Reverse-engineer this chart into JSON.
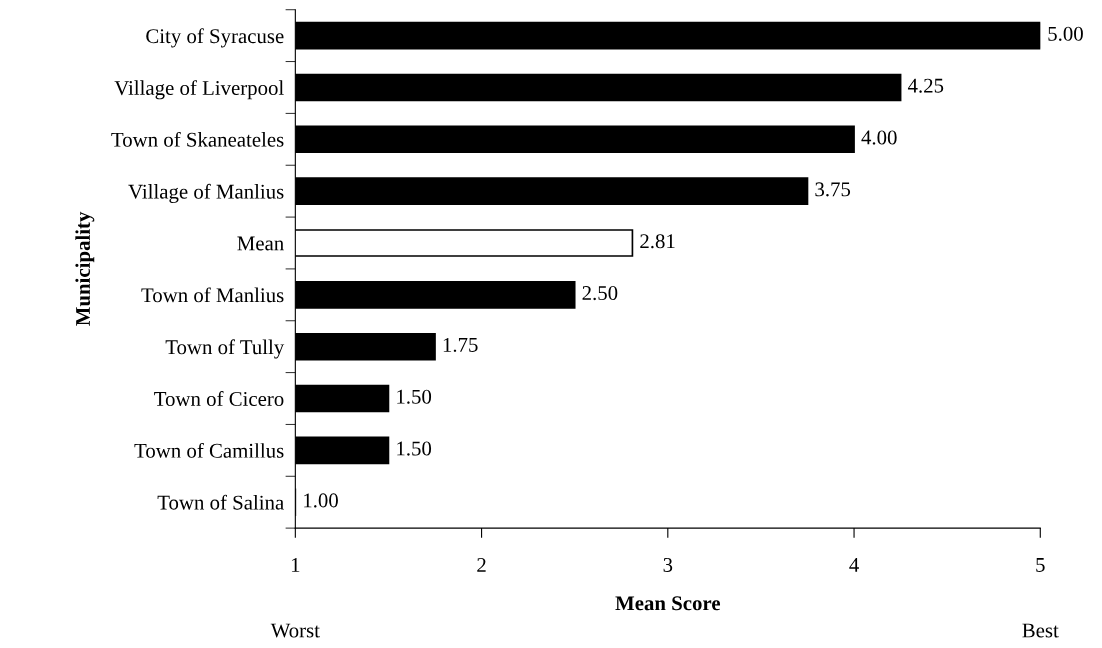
{
  "chart_data": {
    "type": "bar",
    "orientation": "horizontal",
    "xlabel": "Mean Score",
    "ylabel": "Municipality",
    "categories": [
      "City of Syracuse",
      "Village of Liverpool",
      "Town of Skaneateles",
      "Village of Manlius",
      "Mean",
      "Town of Manlius",
      "Town of Tully",
      "Town of Cicero",
      "Town of Camillus",
      "Town of Salina"
    ],
    "values": [
      5.0,
      4.25,
      4.0,
      3.75,
      2.81,
      2.5,
      1.75,
      1.5,
      1.5,
      1.0
    ],
    "value_labels": [
      "5.00",
      "4.25",
      "4.00",
      "3.75",
      "2.81",
      "2.50",
      "1.75",
      "1.50",
      "1.50",
      "1.00"
    ],
    "colors": [
      "#000000",
      "#000000",
      "#000000",
      "#000000",
      "#ffffff",
      "#000000",
      "#000000",
      "#000000",
      "#000000",
      "#000000"
    ],
    "xlim": [
      1,
      5
    ],
    "xticks": [
      1,
      2,
      3,
      4,
      5
    ],
    "grid": false,
    "legend": false,
    "annotations": [
      "Worst",
      "Best"
    ]
  }
}
